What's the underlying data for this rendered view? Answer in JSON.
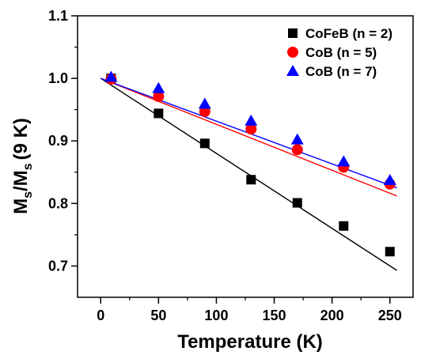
{
  "chart_data": {
    "type": "scatter",
    "xlabel": "Temperature (K)",
    "ylabel": "M_s/M_s (9 K)",
    "ylabel_parts": {
      "m1": "M",
      "s1": "s",
      "slash": "/M",
      "s2": "s",
      "rest": "(9 K)"
    },
    "xlim": [
      -20,
      270
    ],
    "ylim": [
      0.65,
      1.1
    ],
    "x_ticks": [
      0,
      50,
      100,
      150,
      200,
      250
    ],
    "y_ticks": [
      0.7,
      0.8,
      0.9,
      1.0,
      1.1
    ],
    "x_tick_labels": [
      "0",
      "50",
      "100",
      "150",
      "200",
      "250"
    ],
    "y_tick_labels": [
      "0.7",
      "0.8",
      "0.9",
      "1.0",
      "1.1"
    ],
    "legend_placement": "top-right",
    "grid": false,
    "series": [
      {
        "name": "CoFeB (n = 2)",
        "marker": "square",
        "color": "#000000",
        "x": [
          9,
          50,
          90,
          130,
          170,
          210,
          250
        ],
        "y": [
          1.0,
          0.944,
          0.896,
          0.838,
          0.801,
          0.764,
          0.723
        ],
        "fit": {
          "x": [
            0,
            256
          ],
          "y": [
            1.0,
            0.693
          ],
          "color": "#000000"
        }
      },
      {
        "name": "CoB (n = 5)",
        "marker": "circle",
        "color": "#ff0000",
        "x": [
          9,
          50,
          90,
          130,
          170,
          210,
          250
        ],
        "y": [
          0.999,
          0.971,
          0.947,
          0.919,
          0.886,
          0.858,
          0.831
        ],
        "fit": {
          "x": [
            0,
            256
          ],
          "y": [
            1.0,
            0.812
          ],
          "color": "#ff0000"
        }
      },
      {
        "name": "CoB (n = 7)",
        "marker": "triangle",
        "color": "#0000ff",
        "x": [
          9,
          50,
          90,
          130,
          170,
          210,
          250
        ],
        "y": [
          1.002,
          0.984,
          0.959,
          0.932,
          0.902,
          0.867,
          0.837
        ],
        "fit": {
          "x": [
            0,
            256
          ],
          "y": [
            1.0,
            0.825
          ],
          "color": "#0000ff"
        }
      }
    ]
  }
}
